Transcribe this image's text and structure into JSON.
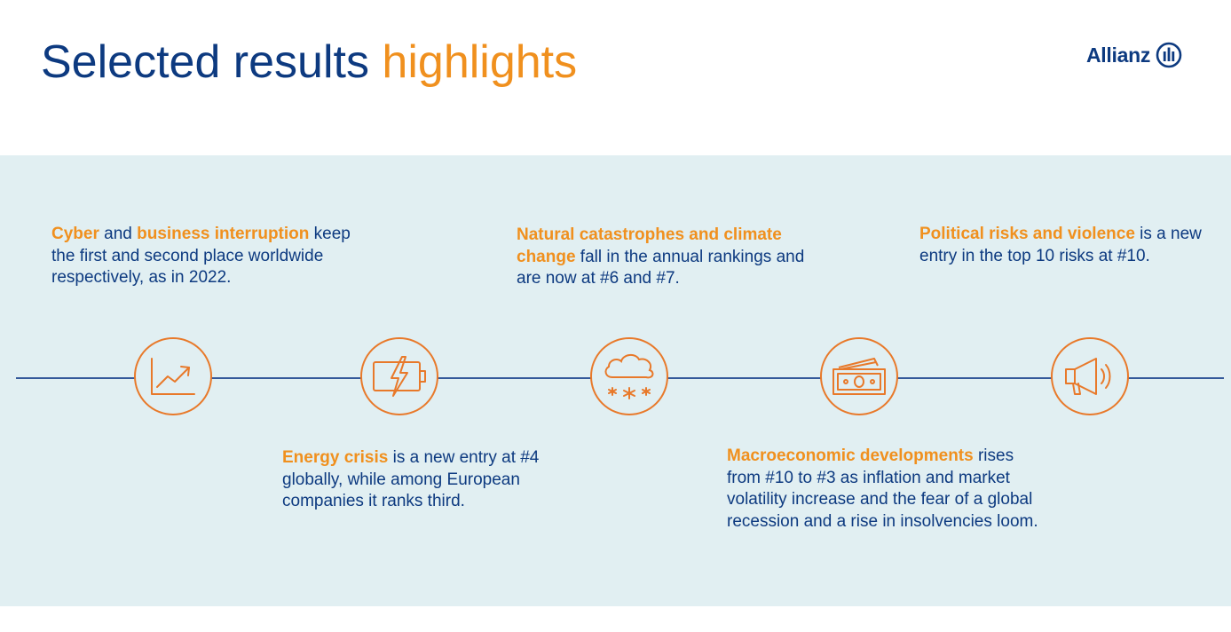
{
  "header": {
    "title_main": "Selected results",
    "title_accent": "highlights",
    "brand_name": "Allianz"
  },
  "icons": [
    "chart-trend-icon",
    "battery-bolt-icon",
    "cloud-snow-icon",
    "banknotes-icon",
    "megaphone-icon"
  ],
  "highlights": {
    "cyber": {
      "hl1": "Cyber",
      "t1": " and ",
      "hl2": "business interruption",
      "t2": " keep the first and second place worldwide respectively, as in 2022."
    },
    "energy": {
      "hl1": "Energy crisis",
      "t1": " is a new entry at #4 globally, while among European companies it ranks third."
    },
    "natcat": {
      "hl1": "Natural catastrophes and climate change",
      "t1": " fall in the annual rankings and are now at #6 and #7."
    },
    "macro": {
      "hl1": "Macroeconomic developments",
      "t1": " rises from #10 to #3 as inflation and market volatility increase and the fear of a global recession and a rise in insolvencies loom."
    },
    "political": {
      "hl1": "Political risks and violence",
      "t1": " is a new entry in the top 10 risks at #10."
    }
  },
  "colors": {
    "navy": "#0d3a80",
    "orange": "#f0901e",
    "icon_orange": "#e8792a",
    "band": "#e1eff2"
  }
}
